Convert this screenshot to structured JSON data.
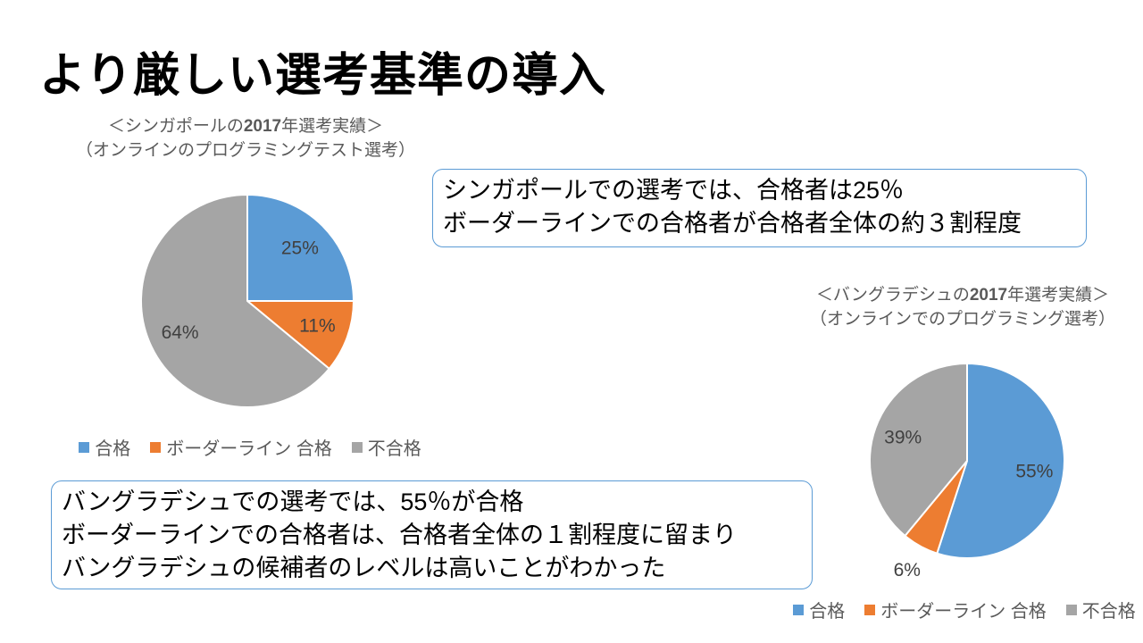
{
  "slide": {
    "title": "より厳しい選考基準の導入"
  },
  "colors": {
    "background": "#FFFFFF",
    "title_text": "#000000",
    "chart_title_text": "#595959",
    "legend_text": "#595959",
    "data_label_text": "#404040",
    "callout_border": "#5B9BD5",
    "accent_blue": "#5B9BD5",
    "accent_orange": "#ED7D31",
    "accent_gray": "#A5A5A5"
  },
  "chart_data": [
    {
      "type": "pie",
      "title_prefix": "＜シンガポールの",
      "title_year": "2017",
      "title_suffix": "年選考実績＞",
      "subtitle": "（オンラインのプログラミングテスト選考）",
      "categories": [
        "合格",
        "ボーダーライン 合格",
        "不合格"
      ],
      "values": [
        25,
        11,
        64
      ],
      "value_labels": [
        "25%",
        "11%",
        "64%"
      ],
      "colors": [
        "#5B9BD5",
        "#ED7D31",
        "#A5A5A5"
      ],
      "start_angle_deg": 0,
      "direction": "clockwise",
      "legend_position": "bottom"
    },
    {
      "type": "pie",
      "title_prefix": "＜バングラデシュの",
      "title_year": "2017",
      "title_suffix": "年選考実績＞",
      "subtitle": "（オンラインでのプログラミング選考）",
      "categories": [
        "合格",
        "ボーダーライン 合格",
        "不合格"
      ],
      "values": [
        55,
        6,
        39
      ],
      "value_labels": [
        "55%",
        "6%",
        "39%"
      ],
      "colors": [
        "#5B9BD5",
        "#ED7D31",
        "#A5A5A5"
      ],
      "start_angle_deg": 0,
      "direction": "clockwise",
      "legend_position": "bottom"
    }
  ],
  "callouts": [
    {
      "lines": [
        "シンガポールでの選考では、合格者は25％",
        "ボーダーラインでの合格者が合格者全体の約３割程度"
      ]
    },
    {
      "lines": [
        "バングラデシュでの選考では、55％が合格",
        "ボーダーラインでの合格者は、合格者全体の１割程度に留まり",
        "バングラデシュの候補者のレベルは高いことがわかった"
      ]
    }
  ]
}
